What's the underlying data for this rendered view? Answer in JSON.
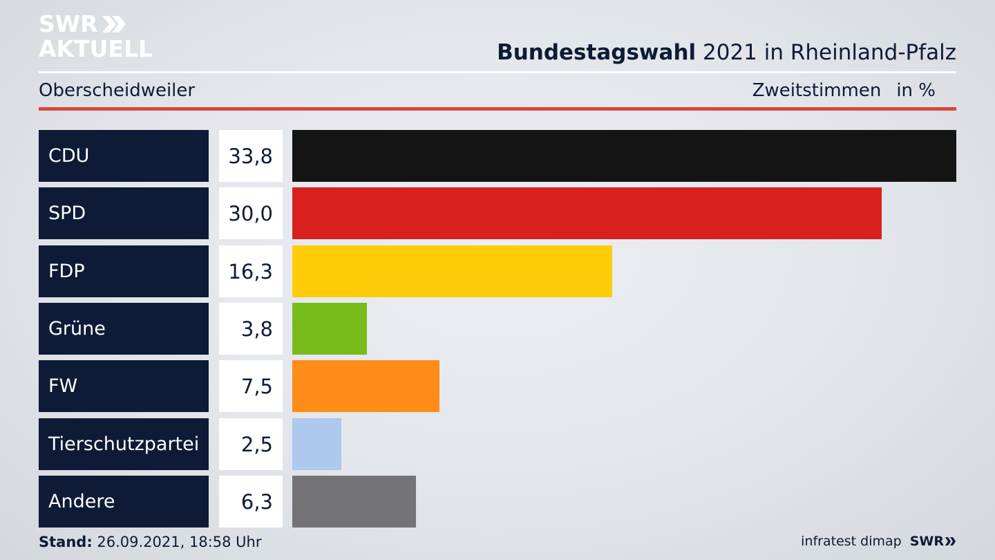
{
  "logo": {
    "line1": "SWR",
    "line2": "AKTUELL"
  },
  "header": {
    "title_bold": "Bundestagswahl",
    "title_rest": " 2021 in Rheinland-Pfalz",
    "location": "Oberscheidweiler",
    "metric": "Zweitstimmen",
    "unit": "in %"
  },
  "colors": {
    "navy": "#0d1b36",
    "red_rule": "#d8473b"
  },
  "chart_data": {
    "type": "bar",
    "orientation": "horizontal",
    "categories": [
      "CDU",
      "SPD",
      "FDP",
      "Grüne",
      "FW",
      "Tierschutzpartei",
      "Andere"
    ],
    "values": [
      33.8,
      30.0,
      16.3,
      3.8,
      7.5,
      2.5,
      6.3
    ],
    "value_labels": [
      "33,8",
      "30,0",
      "16,3",
      "3,8",
      "7,5",
      "2,5",
      "6,3"
    ],
    "colors": [
      "#141414",
      "#d8201f",
      "#ffcc0a",
      "#78bc1c",
      "#ff8c19",
      "#aec8ee",
      "#747477"
    ],
    "xlim": [
      0,
      33.8
    ]
  },
  "footer": {
    "stand_label": "Stand:",
    "stand_value": " 26.09.2021, 18:58 Uhr",
    "source": "infratest dimap",
    "brand": "SWR"
  }
}
